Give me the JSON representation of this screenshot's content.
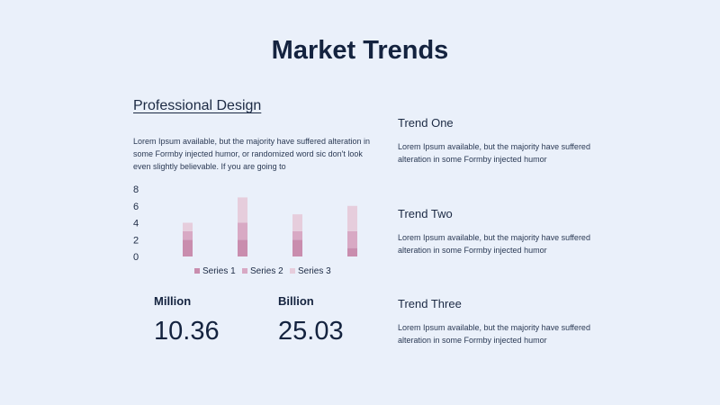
{
  "title": "Market Trends",
  "left": {
    "heading": "Professional Design",
    "body": "Lorem Ipsum available, but the majority have suffered alteration in some Formby injected humor, or randomized word sic don't look even slightly believable. If you are going to"
  },
  "stats": [
    {
      "label": "Million",
      "value": "10.36"
    },
    {
      "label": "Billion",
      "value": "25.03"
    }
  ],
  "trends": [
    {
      "title": "Trend One",
      "body": "Lorem Ipsum available, but the majority have suffered alteration in some Formby injected humor"
    },
    {
      "title": "Trend Two",
      "body": "Lorem Ipsum available, but the majority have suffered alteration in some Formby injected humor"
    },
    {
      "title": "Trend Three",
      "body": "Lorem Ipsum available, but the majority have suffered alteration in some Formby injected humor"
    }
  ],
  "colors": {
    "series1": "#C98DAE",
    "series2": "#D8A9C4",
    "series3": "#E6CDDC"
  },
  "chart_data": {
    "type": "bar",
    "stacked": true,
    "categories": [
      "",
      "",
      "",
      ""
    ],
    "series": [
      {
        "name": "Series 1",
        "values": [
          2,
          2,
          2,
          1
        ]
      },
      {
        "name": "Series 2",
        "values": [
          1,
          2,
          1,
          2
        ]
      },
      {
        "name": "Series 3",
        "values": [
          1,
          3,
          2,
          3
        ]
      }
    ],
    "ylim": [
      0,
      8
    ],
    "yticks": [
      0,
      2,
      4,
      6,
      8
    ],
    "legend": "bottom",
    "grid": false
  }
}
